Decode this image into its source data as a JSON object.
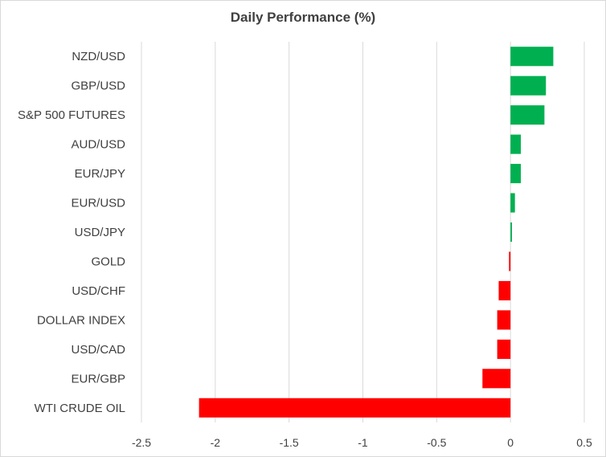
{
  "chart_data": {
    "type": "bar",
    "orientation": "horizontal",
    "title": "Daily Performance (%)",
    "xlabel": "",
    "ylabel": "",
    "xlim": [
      -2.5,
      0.5
    ],
    "x_ticks": [
      -2.5,
      -2,
      -1.5,
      -1,
      -0.5,
      0,
      0.5
    ],
    "x_tick_labels": [
      "-2.5",
      "-2",
      "-1.5",
      "-1",
      "-0.5",
      "0",
      "0.5"
    ],
    "grid": "vertical",
    "legend": "none",
    "categories": [
      "NZD/USD",
      "GBP/USD",
      "S&P 500 FUTURES",
      "AUD/USD",
      "EUR/JPY",
      "EUR/USD",
      "USD/JPY",
      "GOLD",
      "USD/CHF",
      "DOLLAR INDEX",
      "USD/CAD",
      "EUR/GBP",
      "WTI CRUDE OIL"
    ],
    "values": [
      0.29,
      0.24,
      0.23,
      0.07,
      0.07,
      0.03,
      0.01,
      -0.01,
      -0.08,
      -0.09,
      -0.09,
      -0.19,
      -2.11
    ],
    "colors": {
      "positive": "#00b050",
      "negative": "#ff0000"
    }
  },
  "colors": {
    "grid": "#d9d9d9",
    "axis": "#bfbfbf",
    "text": "#404040"
  }
}
